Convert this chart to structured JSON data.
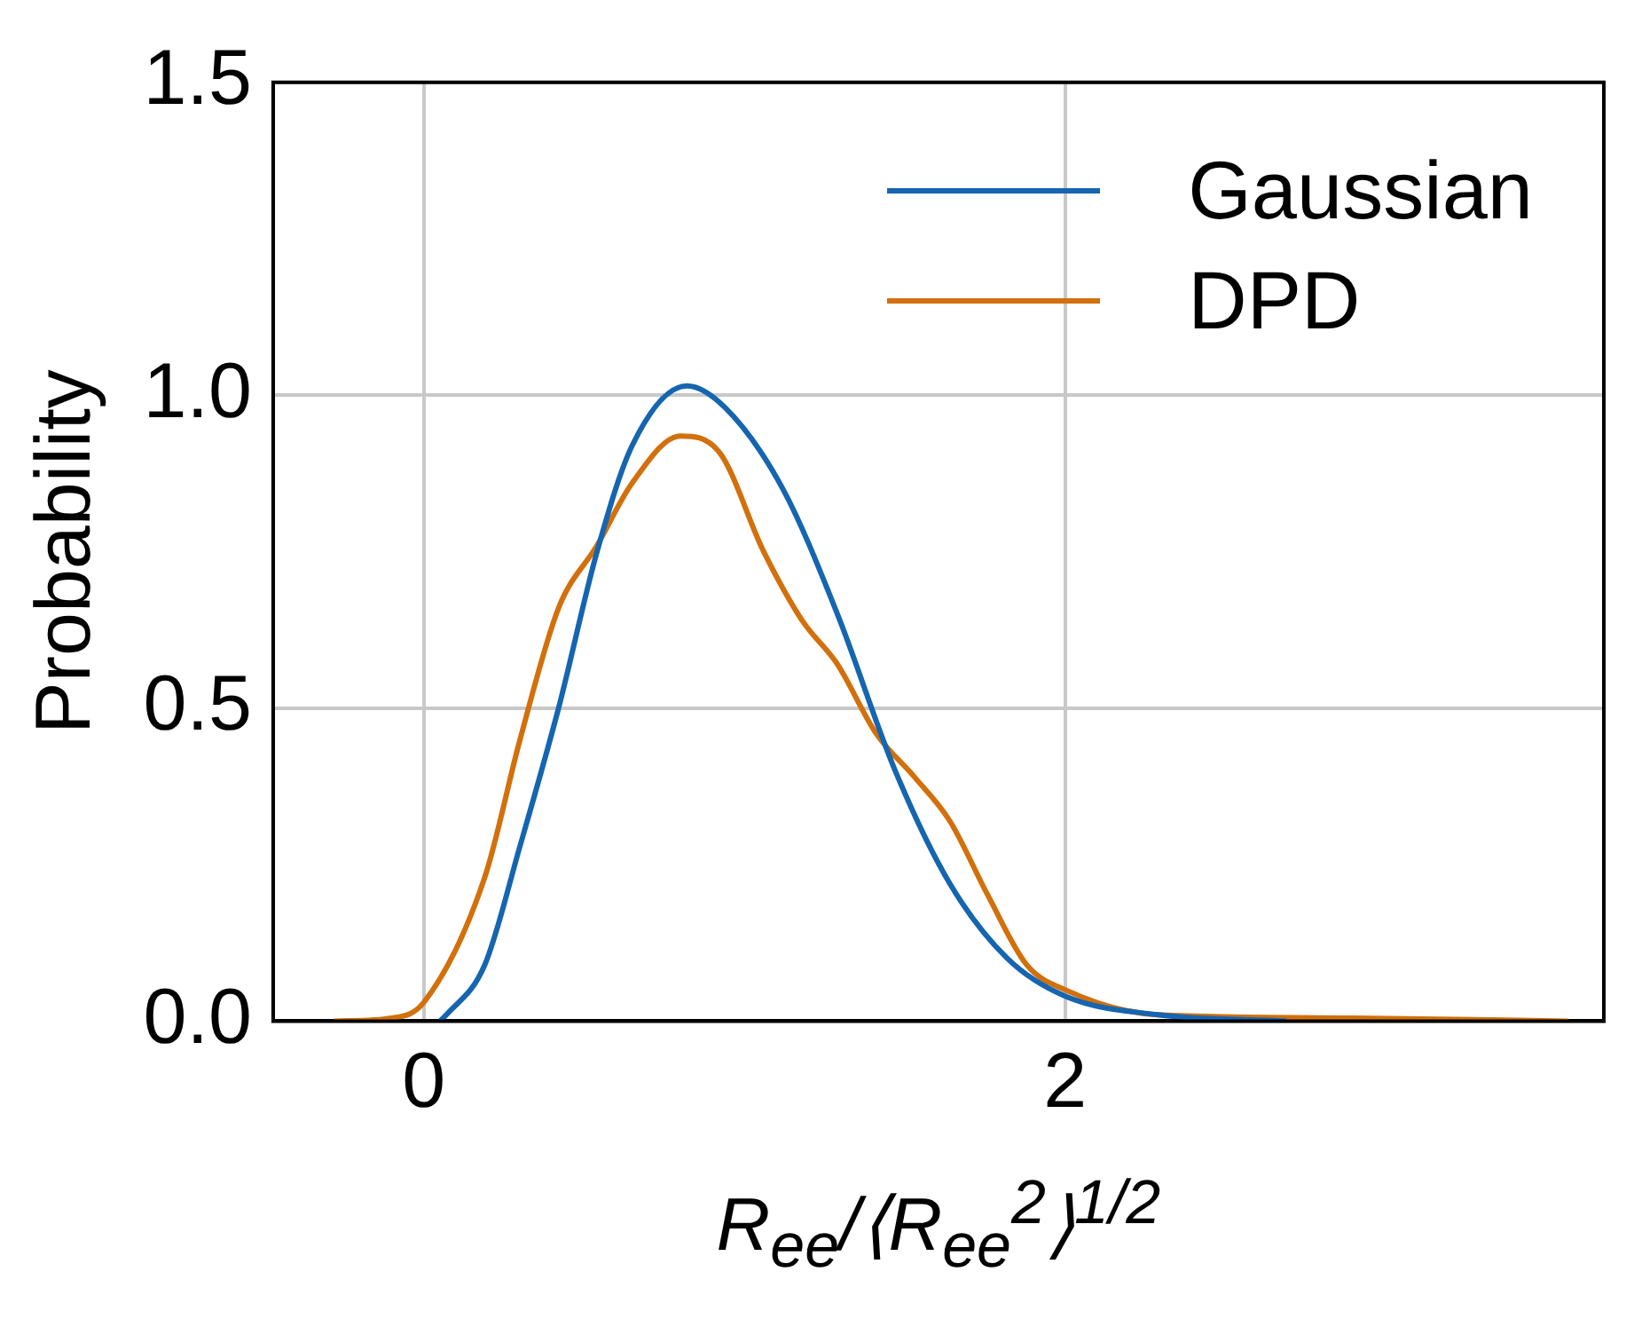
{
  "chart_data": {
    "type": "line",
    "xlabel": "R$_{ee}$/⟨R$_{ee}$$^{2}$⟩$^{1/2}$",
    "ylabel": "Probability",
    "xlim": [
      -0.47,
      3.68
    ],
    "xticks": [
      0,
      2
    ],
    "ylim": [
      0,
      1.5
    ],
    "yticks": [
      {
        "value": 0,
        "label": "0.0"
      },
      {
        "value": 0.5,
        "label": "0.5"
      },
      {
        "value": 1,
        "label": "1.0"
      },
      {
        "value": 1.5,
        "label": "1.5"
      }
    ],
    "grid": true,
    "legend": "top right",
    "marker": "none",
    "line_style": "solid",
    "series": [
      {
        "name": "Gaussian",
        "color": "#1565b0",
        "x": [
          0.05,
          0.07,
          0.19,
          0.3,
          0.42,
          0.54,
          0.65,
          0.82,
          0.94,
          1.12,
          1.29,
          1.47,
          1.64,
          1.82,
          2.0,
          2.29,
          2.69
        ],
        "values": [
          0,
          0.01,
          0.09,
          0.28,
          0.5,
          0.75,
          0.92,
          1.015,
          0.98,
          0.85,
          0.65,
          0.4,
          0.22,
          0.1,
          0.04,
          0.01,
          0
        ]
      },
      {
        "name": "DPD",
        "color": "#d2700c",
        "x": [
          -0.28,
          -0.1,
          0,
          0.19,
          0.3,
          0.42,
          0.54,
          0.65,
          0.8,
          0.92,
          1.06,
          1.18,
          1.29,
          1.41,
          1.53,
          1.64,
          1.76,
          1.88,
          2.0,
          2.29,
          2.87,
          3.57
        ],
        "values": [
          0,
          0.005,
          0.03,
          0.23,
          0.45,
          0.66,
          0.76,
          0.86,
          0.935,
          0.91,
          0.75,
          0.64,
          0.57,
          0.46,
          0.39,
          0.32,
          0.2,
          0.09,
          0.05,
          0.01,
          0.005,
          0
        ]
      }
    ]
  }
}
